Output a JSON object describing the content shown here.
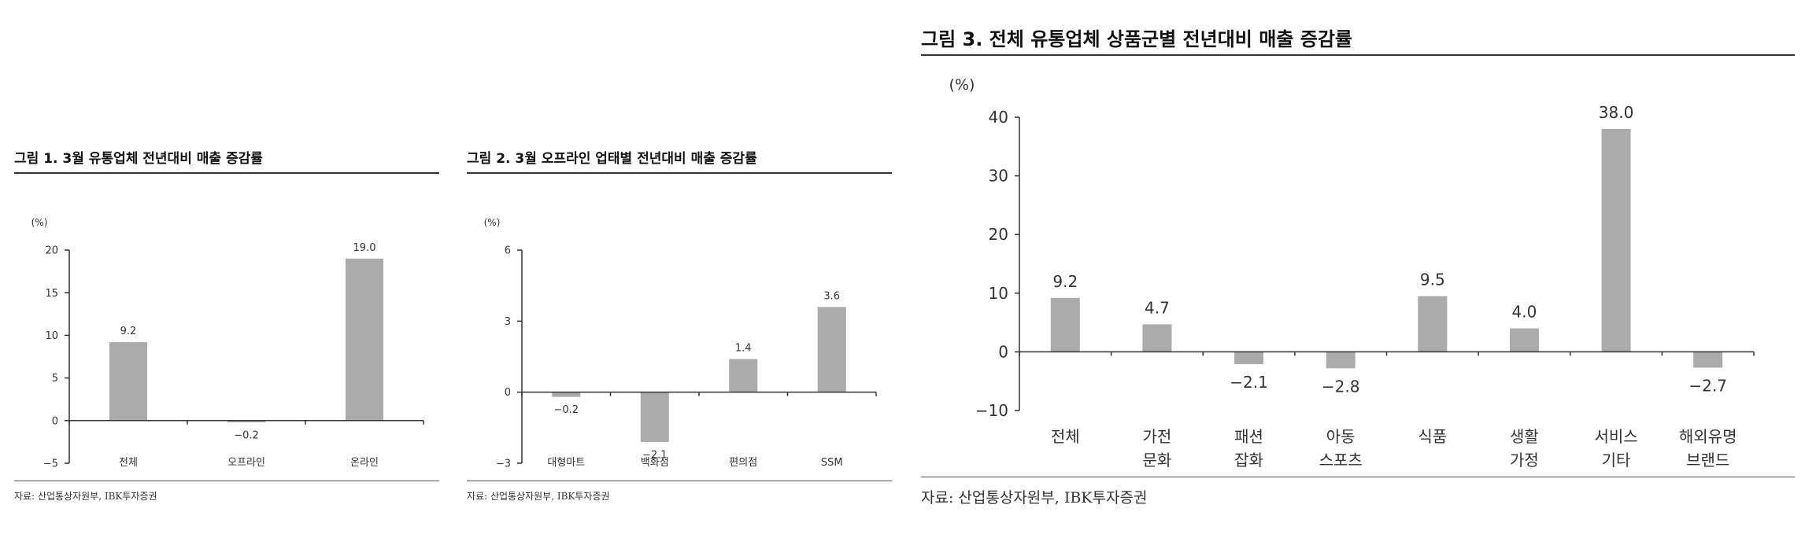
{
  "charts": [
    {
      "title": "그림 1. 3월 유통업체 전년대비 매출 증감률",
      "source": "자료: 산업통상자원부, IBK투자증권",
      "chart_data": {
        "type": "bar",
        "unit": "(%)",
        "categories": [
          "전체",
          "오프라인",
          "온라인"
        ],
        "values": [
          9.2,
          -0.2,
          19.0
        ],
        "value_labels": [
          "9.2",
          "−0.2",
          "19.0"
        ],
        "ylim": [
          -5,
          20
        ],
        "yticks": [
          "−5",
          "0",
          "5",
          "10",
          "15",
          "20"
        ],
        "ytick_values": [
          -5,
          0,
          5,
          10,
          15,
          20
        ],
        "bar_color": "#ababab"
      }
    },
    {
      "title": "그림 2. 3월 오프라인 업태별 전년대비 매출 증감률",
      "source": "자료: 산업통상자원부, IBK투자증권",
      "chart_data": {
        "type": "bar",
        "unit": "(%)",
        "categories": [
          "대형마트",
          "백화점",
          "편의점",
          "SSM"
        ],
        "values": [
          -0.2,
          -2.1,
          1.4,
          3.6
        ],
        "value_labels": [
          "−0.2",
          "−2.1",
          "1.4",
          "3.6"
        ],
        "ylim": [
          -3,
          6
        ],
        "yticks": [
          "−3",
          "0",
          "3",
          "6"
        ],
        "ytick_values": [
          -3,
          0,
          3,
          6
        ],
        "bar_color": "#ababab"
      }
    },
    {
      "title": "그림 3. 전체 유통업체 상품군별 전년대비 매출 증감률",
      "source": "자료: 산업통상자원부, IBK투자증권",
      "chart_data": {
        "type": "bar",
        "unit": "(%)",
        "categories": [
          [
            "전체"
          ],
          [
            "가전",
            "문화"
          ],
          [
            "패션",
            "잡화"
          ],
          [
            "아동",
            "스포츠"
          ],
          [
            "식품"
          ],
          [
            "생활",
            "가정"
          ],
          [
            "서비스",
            "기타"
          ],
          [
            "해외유명",
            "브랜드"
          ]
        ],
        "values": [
          9.2,
          4.7,
          -2.1,
          -2.8,
          9.5,
          4.0,
          38.0,
          -2.7
        ],
        "value_labels": [
          "9.2",
          "4.7",
          "−2.1",
          "−2.8",
          "9.5",
          "4.0",
          "38.0",
          "−2.7"
        ],
        "ylim": [
          -10,
          40
        ],
        "yticks": [
          "−10",
          "0",
          "10",
          "20",
          "30",
          "40"
        ],
        "ytick_values": [
          -10,
          0,
          10,
          20,
          30,
          40
        ],
        "bar_color": "#ababab"
      }
    }
  ]
}
